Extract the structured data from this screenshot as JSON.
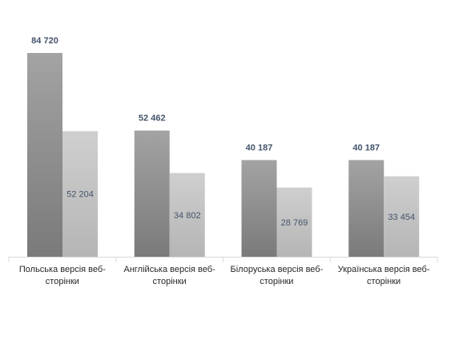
{
  "chart_data": {
    "type": "bar",
    "categories": [
      [
        "Польська версія веб-",
        "сторінки"
      ],
      [
        "Англійська версія веб-",
        "сторінки"
      ],
      [
        "Білоруська версія веб-",
        "сторінки"
      ],
      [
        "Українська версія веб-",
        "сторінки"
      ]
    ],
    "series": [
      {
        "values": [
          84720,
          52462,
          40187,
          40187
        ],
        "labels": [
          "84 720",
          "52 462",
          "40 187",
          "40 187"
        ],
        "color": "#8c8c8c",
        "label_color": "#44546a",
        "label_weight": "bold",
        "label_position": "outside-end"
      },
      {
        "values": [
          52204,
          34802,
          28769,
          33454
        ],
        "labels": [
          "52 204",
          "34 802",
          "28 769",
          "33 454"
        ],
        "color": "#c3c3c3",
        "label_color": "#44546a",
        "label_weight": "normal",
        "label_position": "inside-center"
      }
    ],
    "title": "",
    "xlabel": "",
    "ylabel": "",
    "ylim": [
      0,
      84720
    ],
    "grid": false,
    "legend": "none",
    "axis_color": "#d9d9d9",
    "category_label_color": "#262626"
  }
}
